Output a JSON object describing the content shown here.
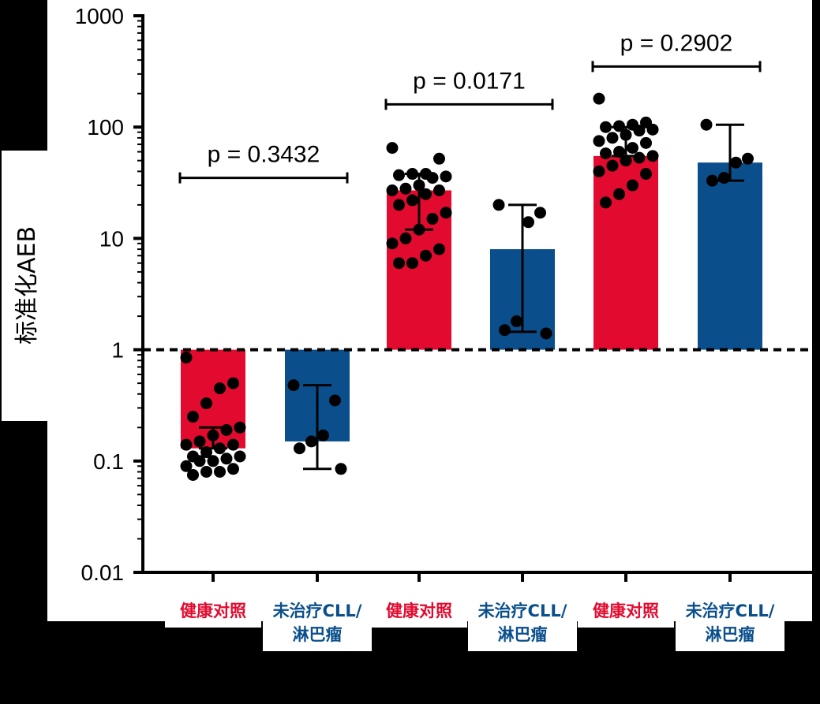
{
  "chart_data": {
    "type": "bar",
    "y_scale": "log",
    "ylabel": "标准化AEB",
    "ylim": [
      0.01,
      1000
    ],
    "y_ticks": [
      "0.01",
      "0.1",
      "1",
      "10",
      "100",
      "1000"
    ],
    "reference_line": 1,
    "colors": {
      "healthy": "#e20a2e",
      "cll": "#0a4f8c"
    },
    "categories": [
      "健康对照",
      "未治疗CLL/淋巴瘤",
      "健康对照",
      "未治疗CLL/淋巴瘤",
      "健康对照",
      "未治疗CLL/淋巴瘤"
    ],
    "bars": [
      {
        "group": "healthy",
        "label_lines": [
          "健康对照"
        ],
        "value": 0.13,
        "err": [
          0.13,
          0.2
        ],
        "points": [
          0.85,
          0.5,
          0.45,
          0.33,
          0.25,
          0.2,
          0.19,
          0.17,
          0.15,
          0.14,
          0.14,
          0.13,
          0.12,
          0.11,
          0.11,
          0.105,
          0.1,
          0.1,
          0.09,
          0.085,
          0.08,
          0.08,
          0.075
        ]
      },
      {
        "group": "cll",
        "label_lines": [
          "未治疗CLL/",
          "淋巴瘤"
        ],
        "value": 0.15,
        "err": [
          0.085,
          0.48
        ],
        "points": [
          0.48,
          0.35,
          0.17,
          0.15,
          0.13,
          0.085
        ]
      },
      {
        "group": "healthy",
        "label_lines": [
          "健康对照"
        ],
        "value": 27,
        "err": [
          12,
          38
        ],
        "points": [
          65,
          52,
          38,
          38,
          37,
          36,
          35,
          30,
          28,
          27,
          27,
          25,
          22,
          20,
          17,
          15,
          12,
          10,
          9,
          8,
          7,
          6,
          6
        ]
      },
      {
        "group": "cll",
        "label_lines": [
          "未治疗CLL/",
          "淋巴瘤"
        ],
        "value": 8,
        "err": [
          1.45,
          20
        ],
        "points": [
          20,
          17,
          14,
          1.8,
          1.5,
          1.4
        ]
      },
      {
        "group": "healthy",
        "label_lines": [
          "健康对照"
        ],
        "value": 55,
        "err": [
          55,
          100
        ],
        "points": [
          180,
          110,
          105,
          102,
          100,
          95,
          93,
          85,
          80,
          75,
          72,
          65,
          60,
          58,
          55,
          53,
          50,
          45,
          40,
          38,
          30,
          25,
          21
        ]
      },
      {
        "group": "cll",
        "label_lines": [
          "未治疗CLL/",
          "淋巴瘤"
        ],
        "value": 48,
        "err": [
          33,
          105
        ],
        "points": [
          105,
          52,
          48,
          35,
          33
        ]
      }
    ],
    "comparisons": [
      {
        "label": "p = 0.3432",
        "bars": [
          0,
          1
        ],
        "y": 35
      },
      {
        "label": "p = 0.0171",
        "bars": [
          2,
          3
        ],
        "y": 160
      },
      {
        "label": "p = 0.2902",
        "bars": [
          4,
          5
        ],
        "y": 350
      }
    ]
  }
}
